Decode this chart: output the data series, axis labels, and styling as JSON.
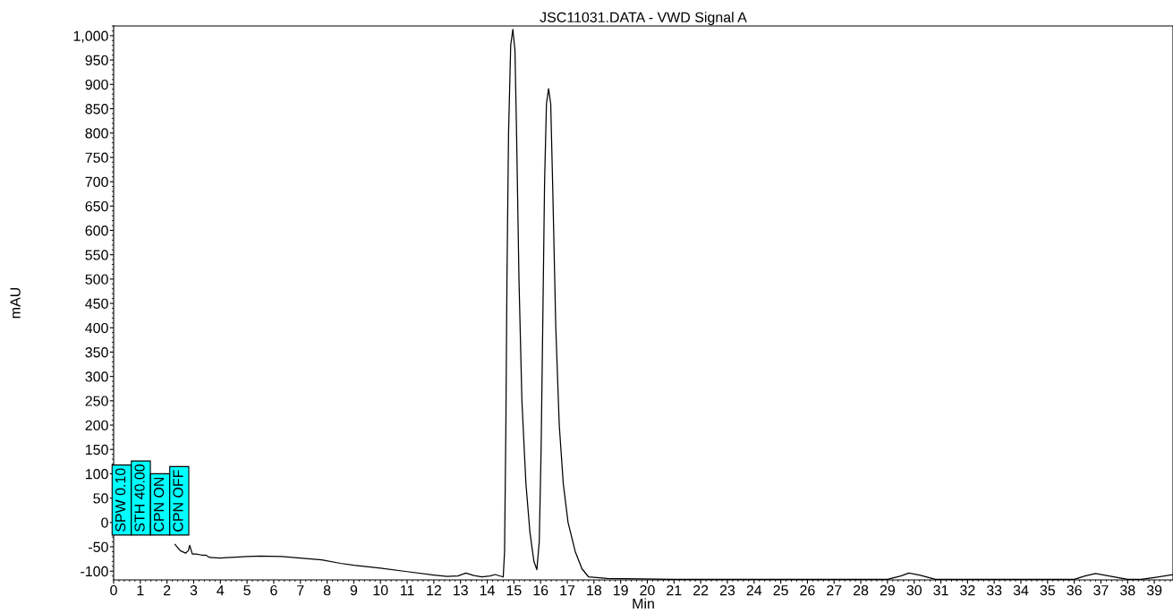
{
  "chart_data": {
    "type": "line",
    "title": "JSC11031.DATA - VWD Signal A",
    "xlabel": "Min",
    "ylabel": "mAU",
    "x": [
      2.3,
      2.5,
      2.7,
      2.8,
      2.85,
      2.95,
      3.1,
      3.3,
      3.45,
      3.6,
      4,
      5,
      5.5,
      6.3,
      7,
      7.8,
      8.5,
      9,
      10,
      11,
      12,
      12.5,
      12.9,
      13.2,
      13.5,
      13.8,
      14.1,
      14.3,
      14.6,
      14.65,
      14.7,
      14.74,
      14.8,
      14.88,
      14.96,
      15.04,
      15.1,
      15.19,
      15.3,
      15.45,
      15.6,
      15.75,
      15.86,
      15.95,
      16.02,
      16.08,
      16.15,
      16.22,
      16.3,
      16.38,
      16.45,
      16.57,
      16.7,
      16.85,
      17.03,
      17.3,
      17.55,
      17.8,
      18.5,
      21,
      29,
      29.5,
      29.8,
      30.2,
      30.8,
      36,
      36.4,
      36.8,
      37.3,
      38,
      38.5,
      39,
      39.7
    ],
    "series": [
      {
        "color": "#000000",
        "values": [
          -45,
          -58,
          -63,
          -58,
          -47,
          -65,
          -65,
          -67,
          -67,
          -72,
          -73,
          -70,
          -69,
          -70,
          -73,
          -77,
          -84,
          -88,
          -94,
          -101,
          -108,
          -111,
          -110,
          -104,
          -109,
          -112,
          -110,
          -107,
          -112,
          -60,
          200,
          500,
          800,
          980,
          1013,
          970,
          800,
          500,
          250,
          80,
          -20,
          -80,
          -97,
          -40,
          150,
          400,
          700,
          860,
          891,
          860,
          700,
          400,
          200,
          80,
          0,
          -60,
          -95,
          -112,
          -115,
          -117,
          -117,
          -110,
          -104,
          -108,
          -117,
          -117,
          -110,
          -105,
          -110,
          -117,
          -117,
          -113,
          -107
        ]
      }
    ],
    "xlim": [
      0,
      39.7
    ],
    "ylim": [
      -118,
      1020
    ],
    "xticks": [
      0,
      1,
      2,
      3,
      4,
      5,
      6,
      7,
      8,
      9,
      10,
      11,
      12,
      13,
      14,
      15,
      16,
      17,
      18,
      19,
      20,
      21,
      22,
      23,
      24,
      25,
      26,
      27,
      28,
      29,
      30,
      31,
      32,
      33,
      34,
      35,
      36,
      37,
      38,
      39
    ],
    "yticks": [
      -100,
      -50,
      0,
      50,
      100,
      150,
      200,
      250,
      300,
      350,
      400,
      450,
      500,
      550,
      600,
      650,
      700,
      750,
      800,
      850,
      900,
      950,
      {
        "value": 1000,
        "label": "1,000"
      }
    ],
    "annotations": [
      "SPW 0.10",
      "STH 40.00",
      "CPN ON",
      "CPN OFF"
    ],
    "grid": false
  }
}
